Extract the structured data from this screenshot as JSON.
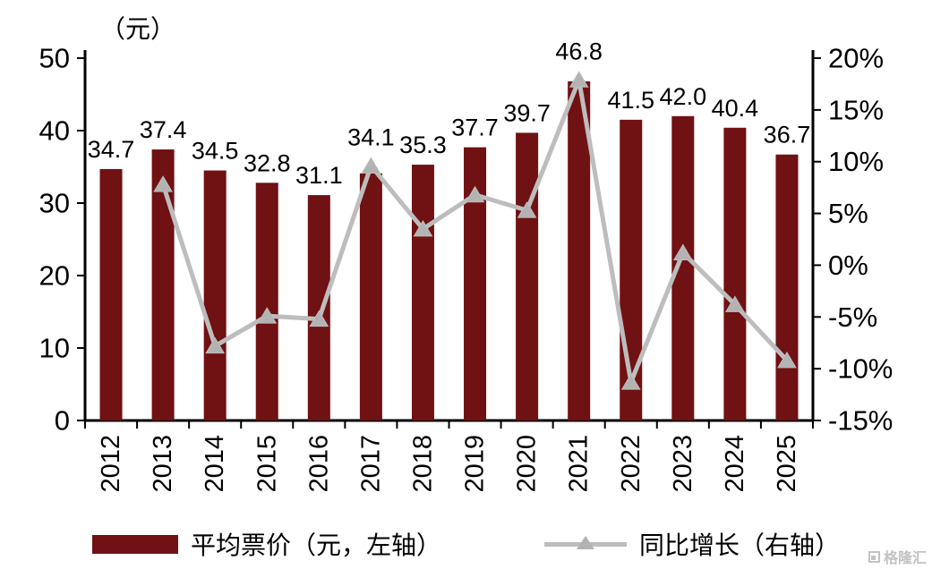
{
  "chart_data": {
    "type": "combo",
    "title": "",
    "unit_label": "（元）",
    "categories": [
      "2012",
      "2013",
      "2014",
      "2015",
      "2016",
      "2017",
      "2018",
      "2019",
      "2020",
      "2021",
      "2022",
      "2023",
      "2024",
      "2025"
    ],
    "series": [
      {
        "name": "平均票价（元，左轴）",
        "type": "bar",
        "axis": "left",
        "values": [
          34.7,
          37.4,
          34.5,
          32.8,
          31.1,
          34.1,
          35.3,
          37.7,
          39.7,
          46.8,
          41.5,
          42.0,
          40.4,
          36.7
        ]
      },
      {
        "name": "同比增长（右轴）",
        "type": "line",
        "axis": "right",
        "values": [
          null,
          7.8,
          -7.8,
          -4.9,
          -5.2,
          9.6,
          3.5,
          6.8,
          5.3,
          17.9,
          -11.3,
          1.2,
          -3.8,
          -9.2
        ]
      }
    ],
    "bar_labels": [
      "34.7",
      "37.4",
      "34.5",
      "32.8",
      "31.1",
      "34.1",
      "35.3",
      "37.7",
      "39.7",
      "46.8",
      "41.5",
      "42.0",
      "40.4",
      "36.7"
    ],
    "left_axis": {
      "min": 0,
      "max": 50,
      "ticks": [
        0,
        10,
        20,
        30,
        40,
        50
      ],
      "tick_labels": [
        "0",
        "10",
        "20",
        "30",
        "40",
        "50"
      ]
    },
    "right_axis": {
      "min": -15,
      "max": 20,
      "ticks": [
        -15,
        -10,
        -5,
        0,
        5,
        10,
        15,
        20
      ],
      "tick_labels": [
        "-15%",
        "-10%",
        "-5%",
        "0%",
        "5%",
        "10%",
        "15%",
        "20%"
      ]
    },
    "grid": false,
    "legend_position": "bottom"
  },
  "legend": {
    "bar_label": "平均票价（元，左轴）",
    "line_label": "同比增长（右轴）"
  },
  "watermark": "格隆汇",
  "colors": {
    "bar": "#701113",
    "line": "#bdbdbd",
    "marker": "#b3b3b3",
    "axis": "#000000",
    "watermark": "#c3c3c3"
  }
}
